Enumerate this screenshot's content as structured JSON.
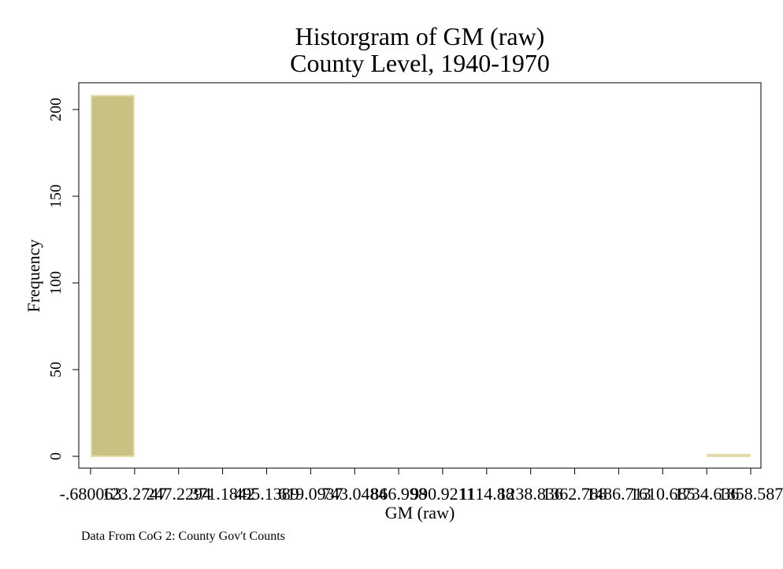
{
  "chart_data": {
    "type": "histogram",
    "title": "Historgram of GM  (raw)",
    "subtitle": "County Level, 1940-1970",
    "xlabel": "GM  (raw)",
    "ylabel": "Frequency",
    "note": "Data From CoG 2: County Gov't Counts",
    "ylim": [
      0,
      215
    ],
    "y_ticks": [
      0,
      50,
      100,
      150,
      200
    ],
    "x_ticks": [
      -0.680063,
      123.2747,
      247.2294,
      371.1842,
      495.1389,
      619.0937,
      743.0484,
      866.998,
      990.9211,
      1114.88,
      1238.836,
      1362.788,
      1486.713,
      1610.685,
      1734.636,
      1858.587
    ],
    "x_tick_labels": [
      "-.680063",
      "123.2747",
      "247.2294",
      "371.1842",
      "495.1389",
      "619.0937",
      "743.0484",
      "866.998",
      "990.9211",
      "1114.88",
      "1238.836",
      "1362.788",
      "1486.713",
      "1610.685",
      "1734.636",
      "1858.587"
    ],
    "bins": [
      {
        "from": -0.680063,
        "to": 123.2747,
        "count": 208
      },
      {
        "from": 1734.636,
        "to": 1858.587,
        "count": 1
      }
    ],
    "colors": {
      "bar": "#c9c181",
      "bar_edge": "#e4dcae",
      "axis": "#000000"
    }
  }
}
